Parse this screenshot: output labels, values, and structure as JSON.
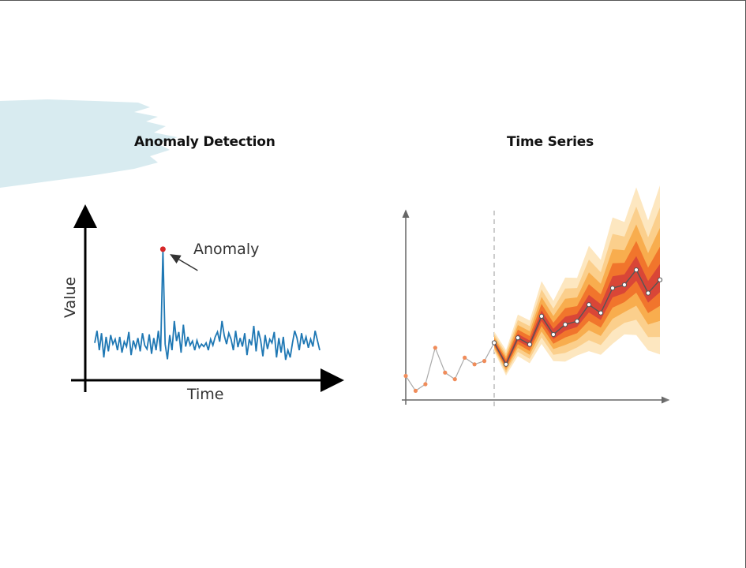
{
  "panels": {
    "anomaly": {
      "title": "Anomaly Detection"
    },
    "forecast": {
      "title": "Time Series"
    }
  },
  "chart_data": [
    {
      "type": "line",
      "title": "Anomaly Detection",
      "xlabel": "Time",
      "ylabel": "Value",
      "annotation": {
        "text": "Anomaly",
        "x_index": 30
      },
      "series": [
        {
          "values": [
            0.42,
            0.62,
            0.3,
            0.58,
            0.18,
            0.52,
            0.28,
            0.55,
            0.4,
            0.48,
            0.3,
            0.52,
            0.26,
            0.44,
            0.36,
            0.6,
            0.22,
            0.46,
            0.34,
            0.5,
            0.28,
            0.58,
            0.38,
            0.32,
            0.56,
            0.24,
            0.5,
            0.3,
            0.62,
            0.28,
            1.95,
            0.4,
            0.15,
            0.55,
            0.3,
            0.78,
            0.45,
            0.6,
            0.26,
            0.72,
            0.36,
            0.52,
            0.38,
            0.45,
            0.3,
            0.46,
            0.34,
            0.4,
            0.36,
            0.42,
            0.3,
            0.48,
            0.38,
            0.52,
            0.6,
            0.44,
            0.78,
            0.54,
            0.4,
            0.58,
            0.48,
            0.3,
            0.62,
            0.35,
            0.5,
            0.36,
            0.58,
            0.22,
            0.48,
            0.38,
            0.7,
            0.28,
            0.62,
            0.46,
            0.2,
            0.55,
            0.32,
            0.48,
            0.42,
            0.6,
            0.18,
            0.5,
            0.26,
            0.52,
            0.14,
            0.3,
            0.18,
            0.42,
            0.62,
            0.5,
            0.3,
            0.58,
            0.4,
            0.52,
            0.34,
            0.48,
            0.36,
            0.62,
            0.46,
            0.3
          ]
        }
      ],
      "colors": {
        "line": "#1f78b4",
        "anomaly": "#d62728"
      }
    },
    {
      "type": "line",
      "title": "Time Series",
      "xlabel": "",
      "ylabel": "",
      "history": [
        0.35,
        0.26,
        0.3,
        0.52,
        0.37,
        0.33,
        0.46,
        0.42,
        0.44
      ],
      "forecast": [
        0.55,
        0.42,
        0.58,
        0.54,
        0.71,
        0.6,
        0.66,
        0.68,
        0.78,
        0.73,
        0.88,
        0.9,
        0.99,
        0.85,
        0.93
      ],
      "bands": [
        {
          "spread": 0.6,
          "color": "#fde7c0"
        },
        {
          "spread": 0.46,
          "color": "#fbcf8c"
        },
        {
          "spread": 0.33,
          "color": "#f8ad4e"
        },
        {
          "spread": 0.21,
          "color": "#f1752c"
        },
        {
          "spread": 0.1,
          "color": "#d94637"
        }
      ],
      "colors": {
        "history_line": "#aaaaaa",
        "history_point": "#f08c5a",
        "forecast_line": "#555555",
        "forecast_point": "#ffffff"
      }
    }
  ]
}
